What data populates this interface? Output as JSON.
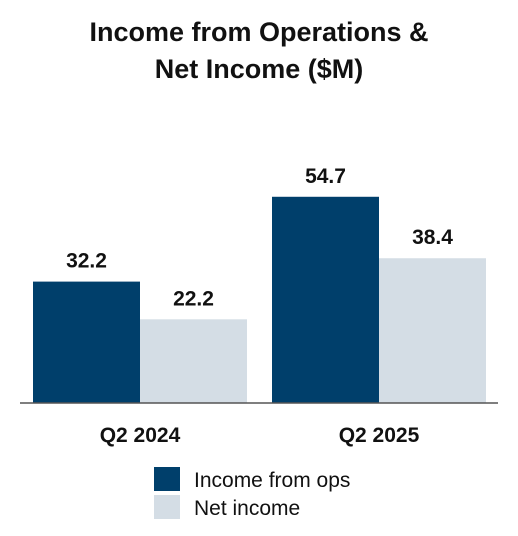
{
  "chart_data": {
    "type": "bar",
    "title": [
      "Income from Operations &",
      "Net Income ($M)"
    ],
    "categories": [
      "Q2 2024",
      "Q2 2025"
    ],
    "series": [
      {
        "name": "Income from ops",
        "values": [
          32.2,
          54.7
        ],
        "color": "#003f6b"
      },
      {
        "name": "Net income",
        "values": [
          22.2,
          38.4
        ],
        "color": "#d4dde5"
      }
    ],
    "xlabel": "",
    "ylabel": "",
    "ylim": [
      0,
      60
    ],
    "grid": false,
    "legend": "bottom"
  }
}
